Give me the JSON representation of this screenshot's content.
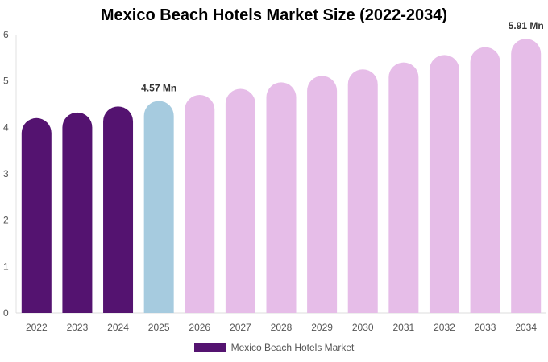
{
  "chart_data": {
    "type": "bar",
    "title": "Mexico Beach Hotels Market Size (2022-2034)",
    "xlabel": "",
    "ylabel": "",
    "categories": [
      "2022",
      "2023",
      "2024",
      "2025",
      "2026",
      "2027",
      "2028",
      "2029",
      "2030",
      "2031",
      "2032",
      "2033",
      "2034"
    ],
    "series": [
      {
        "name": "Mexico Beach Hotels Market",
        "values": [
          4.2,
          4.32,
          4.45,
          4.57,
          4.7,
          4.83,
          4.97,
          5.11,
          5.25,
          5.4,
          5.56,
          5.73,
          5.91
        ]
      }
    ],
    "ylim": [
      0,
      6
    ],
    "yticks": [
      "0",
      "1",
      "2",
      "3",
      "4",
      "5",
      "6"
    ],
    "data_labels": [
      {
        "category": "2025",
        "text": "4.57 Mn"
      },
      {
        "category": "2034",
        "text": "5.91 Mn"
      }
    ],
    "colors": {
      "historical": "#541370",
      "current": "#a6cbdf",
      "forecast": "#e6bde8"
    },
    "bar_color_groups": [
      "historical",
      "historical",
      "historical",
      "current",
      "forecast",
      "forecast",
      "forecast",
      "forecast",
      "forecast",
      "forecast",
      "forecast",
      "forecast",
      "forecast"
    ],
    "legend": {
      "position": "bottom",
      "color": "#541370"
    },
    "grid": true
  }
}
